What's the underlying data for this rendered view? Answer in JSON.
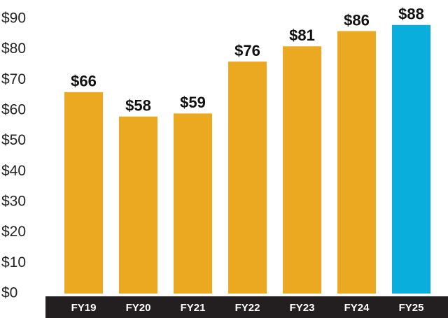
{
  "chart_data": {
    "type": "bar",
    "categories": [
      "FY19",
      "FY20",
      "FY21",
      "FY22",
      "FY23",
      "FY24",
      "FY25"
    ],
    "values": [
      66,
      58,
      59,
      76,
      81,
      86,
      88
    ],
    "value_labels": [
      "$66",
      "$58",
      "$59",
      "$76",
      "$81",
      "$86",
      "$88"
    ],
    "colors": [
      "#eba921",
      "#eba921",
      "#eba921",
      "#eba921",
      "#eba921",
      "#eba921",
      "#0aaedc"
    ],
    "ylim": [
      0,
      90
    ],
    "yticks": [
      {
        "value": 0,
        "label": "$0"
      },
      {
        "value": 10,
        "label": "$10"
      },
      {
        "value": 20,
        "label": "$20"
      },
      {
        "value": 30,
        "label": "$30"
      },
      {
        "value": 40,
        "label": "$40"
      },
      {
        "value": 50,
        "label": "$50"
      },
      {
        "value": 60,
        "label": "$60"
      },
      {
        "value": 70,
        "label": "$70"
      },
      {
        "value": 80,
        "label": "$80"
      },
      {
        "value": 90,
        "label": "$90"
      }
    ],
    "grid": false
  }
}
